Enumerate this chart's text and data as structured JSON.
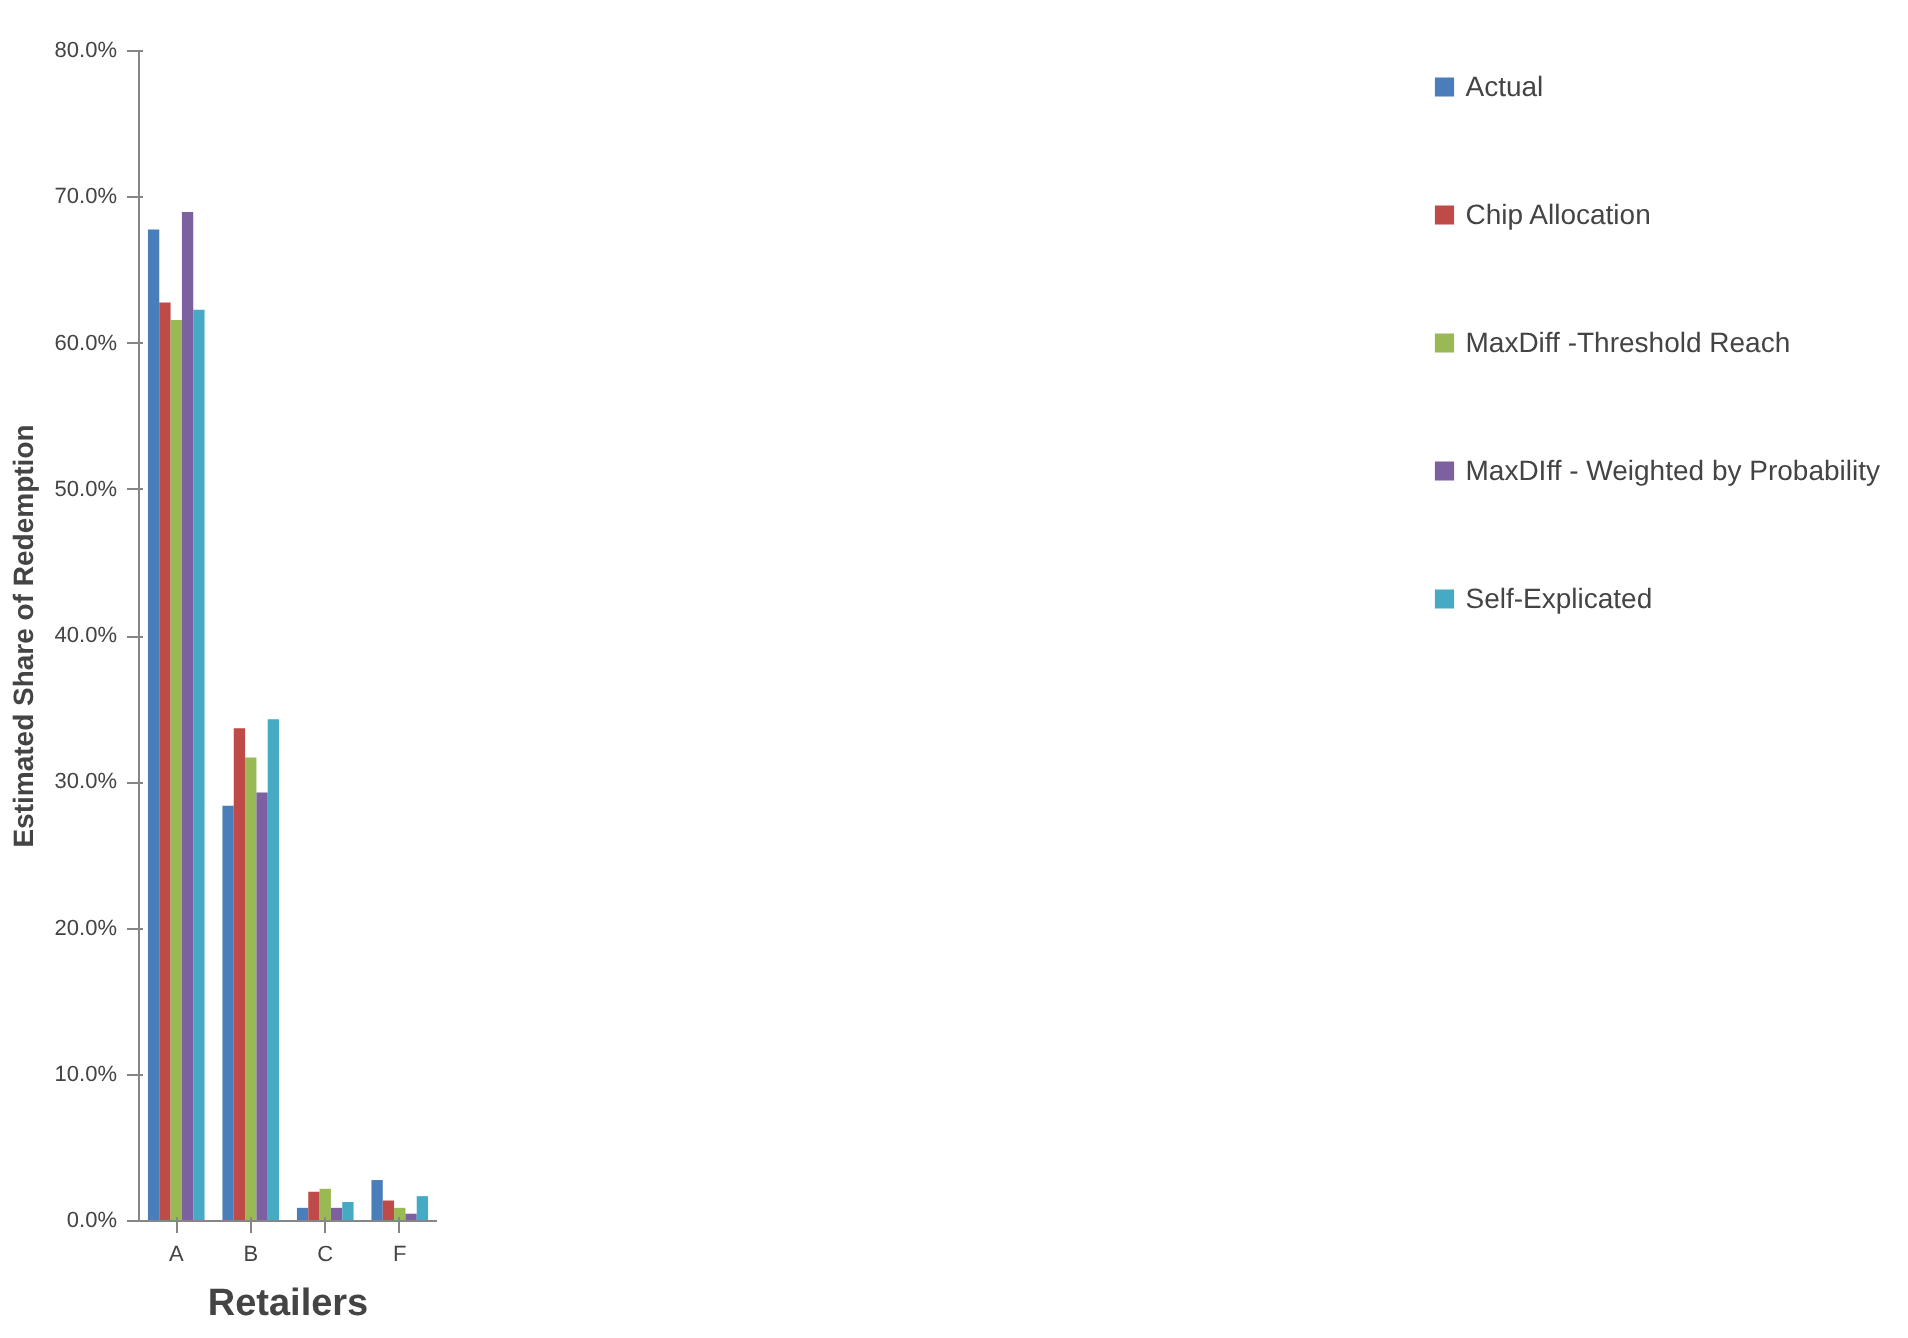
{
  "chart_data": {
    "type": "bar",
    "xlabel": "Retailers",
    "ylabel": "Estimated Share of Redemption",
    "categories": [
      "A",
      "B",
      "C",
      "F"
    ],
    "series": [
      {
        "name": "Actual",
        "color": "#4a7ebb",
        "values": [
          67.8,
          28.4,
          0.9,
          2.8
        ]
      },
      {
        "name": "Chip Allocation",
        "color": "#be4b48",
        "values": [
          62.8,
          33.7,
          2.0,
          1.4
        ]
      },
      {
        "name": "MaxDiff -Threshold Reach",
        "color": "#98b954",
        "values": [
          61.6,
          31.7,
          2.2,
          0.9
        ]
      },
      {
        "name": "MaxDIff - Weighted by Probability",
        "color": "#7d60a0",
        "values": [
          69.0,
          29.3,
          0.9,
          0.5
        ]
      },
      {
        "name": "Self-Explicated",
        "color": "#46aac5",
        "values": [
          62.3,
          34.3,
          1.3,
          1.7
        ]
      }
    ],
    "ylim": [
      0,
      80
    ],
    "yticks": [
      {
        "value": 0,
        "label": "0.0%"
      },
      {
        "value": 10,
        "label": "10.0%"
      },
      {
        "value": 20,
        "label": "20.0%"
      },
      {
        "value": 30,
        "label": "30.0%"
      },
      {
        "value": 40,
        "label": "40.0%"
      },
      {
        "value": 50,
        "label": "50.0%"
      },
      {
        "value": 60,
        "label": "60.0%"
      },
      {
        "value": 70,
        "label": "70.0%"
      },
      {
        "value": 80,
        "label": "80.0%"
      }
    ],
    "grid": false,
    "legend": "right"
  }
}
